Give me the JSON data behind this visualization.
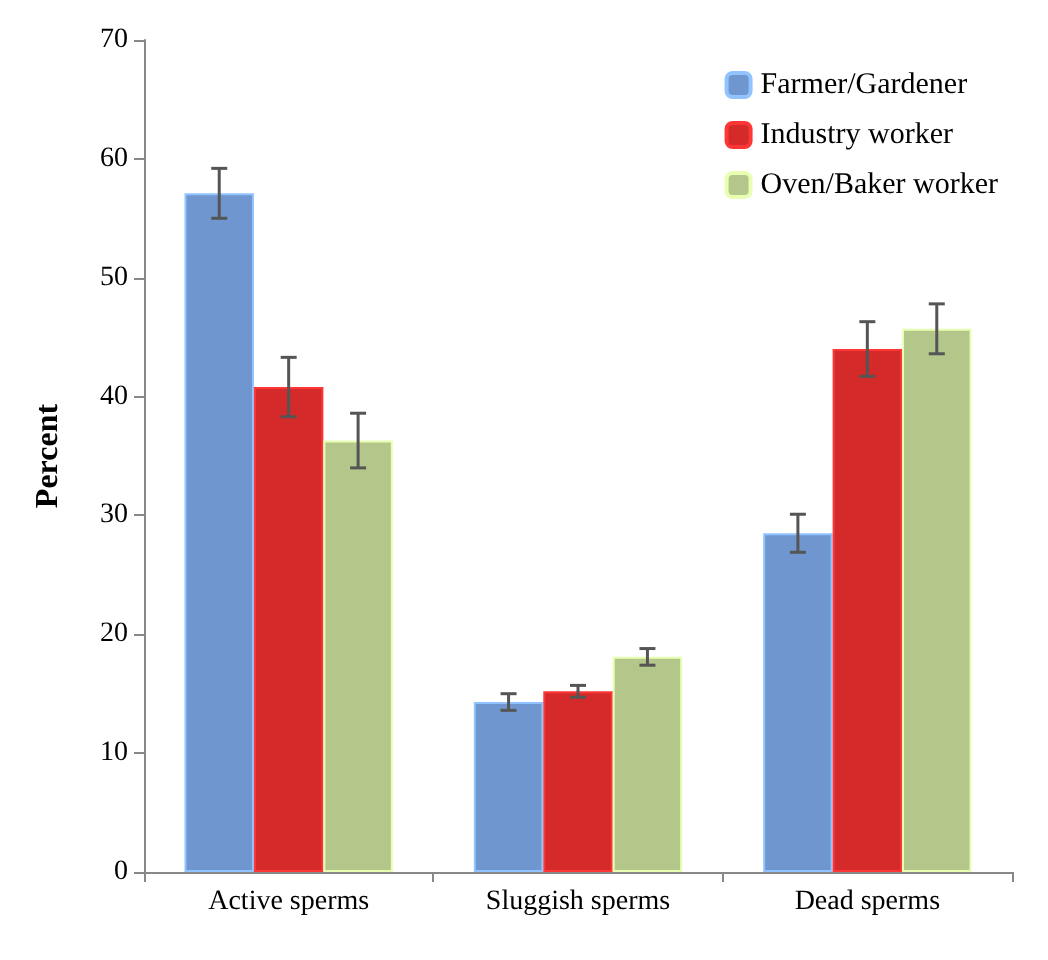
{
  "chart_data": {
    "type": "bar",
    "ylabel": "Percent",
    "categories": [
      "Active sperms",
      "Sluggish sperms",
      "Dead sperms"
    ],
    "series": [
      {
        "name": "Farmer/Gardener",
        "color": "#6f96cf",
        "values": [
          57.1,
          14.3,
          28.5
        ],
        "errors": [
          2.1,
          0.7,
          1.6
        ]
      },
      {
        "name": "Industry worker",
        "color": "#d42a2a",
        "values": [
          40.8,
          15.2,
          44.0
        ],
        "errors": [
          2.5,
          0.5,
          2.3
        ]
      },
      {
        "name": "Oven/Baker worker",
        "color": "#b3c78a",
        "values": [
          36.3,
          18.1,
          45.7
        ],
        "errors": [
          2.3,
          0.7,
          2.1
        ]
      }
    ],
    "ylim": [
      0,
      70
    ],
    "yticks": [
      0,
      10,
      20,
      30,
      40,
      50,
      60,
      70
    ],
    "grid": false,
    "legend": "top right"
  }
}
